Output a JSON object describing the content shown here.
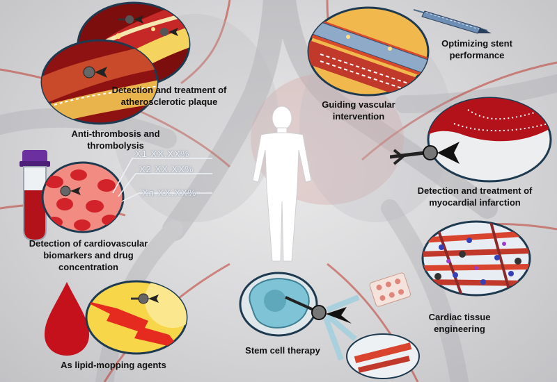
{
  "labels": {
    "plaque": [
      "Detection and treatment of",
      "atherosclerotic plaque"
    ],
    "thrombosis": [
      "Anti-thrombosis and",
      "thrombolysis"
    ],
    "biomarkers": [
      "Detection of cardiovascular",
      "biomarkers and drug",
      "concentration"
    ],
    "lipid": "As lipid-mopping agents",
    "stent": [
      "Optimizing stent",
      "performance"
    ],
    "vascular": [
      "Guiding vascular",
      "intervention"
    ],
    "myocardial": [
      "Detection and treatment of",
      "myocardial infarction"
    ],
    "cardiac_tissue": [
      "Cardiac tissue",
      "engineering"
    ],
    "stem_cell": "Stem cell therapy"
  },
  "readout": [
    "X1   XX.XX%",
    "X2   XX.XX%",
    "Xn   XX.XX%"
  ],
  "colors": {
    "vessel_red": "#c0392b",
    "blood_red": "#b3121b",
    "plaque_yellow": "#f2c12e",
    "cell_teal": "#7fc4d6",
    "label_text": "#111111"
  },
  "icons": [
    "nanoparticle-arrow-icon",
    "blood-tube-icon",
    "blood-drop-icon",
    "human-silhouette-icon",
    "pill-blister-icon"
  ]
}
